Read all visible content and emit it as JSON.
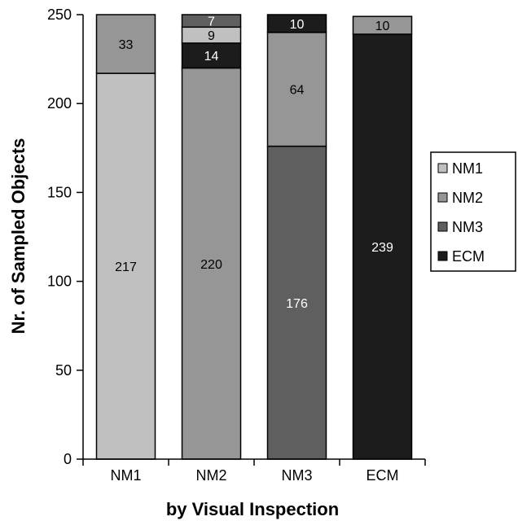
{
  "chart_data": {
    "type": "bar",
    "stacked": true,
    "categories": [
      "NM1",
      "NM2",
      "NM3",
      "ECM"
    ],
    "series": [
      {
        "name": "NM1",
        "color": "#c0c0c0",
        "values": [
          217,
          9,
          0,
          0
        ]
      },
      {
        "name": "NM2",
        "color": "#969696",
        "values": [
          33,
          220,
          64,
          10
        ]
      },
      {
        "name": "NM3",
        "color": "#5f5f5f",
        "values": [
          0,
          7,
          176,
          0
        ]
      },
      {
        "name": "ECM",
        "color": "#1c1c1c",
        "values": [
          0,
          14,
          10,
          239
        ]
      }
    ],
    "stack_order": [
      [
        "NM1",
        "NM2"
      ],
      [
        "NM2",
        "ECM",
        "NM1",
        "NM3"
      ],
      [
        "NM3",
        "NM2",
        "ECM"
      ],
      [
        "ECM",
        "NM2"
      ]
    ],
    "labels": [
      [
        "217",
        "33"
      ],
      [
        "220",
        "14",
        "9",
        "7"
      ],
      [
        "176",
        "64",
        "10"
      ],
      [
        "239",
        "10"
      ]
    ],
    "ylabel": "Nr. of Sampled Objects",
    "xlabel": "by Visual Inspection",
    "ylim": [
      0,
      250
    ],
    "yticks": [
      0,
      50,
      100,
      150,
      200,
      250
    ],
    "grid": false,
    "legend": {
      "position": "right",
      "entries": [
        "NM1",
        "NM2",
        "NM3",
        "ECM"
      ]
    }
  }
}
